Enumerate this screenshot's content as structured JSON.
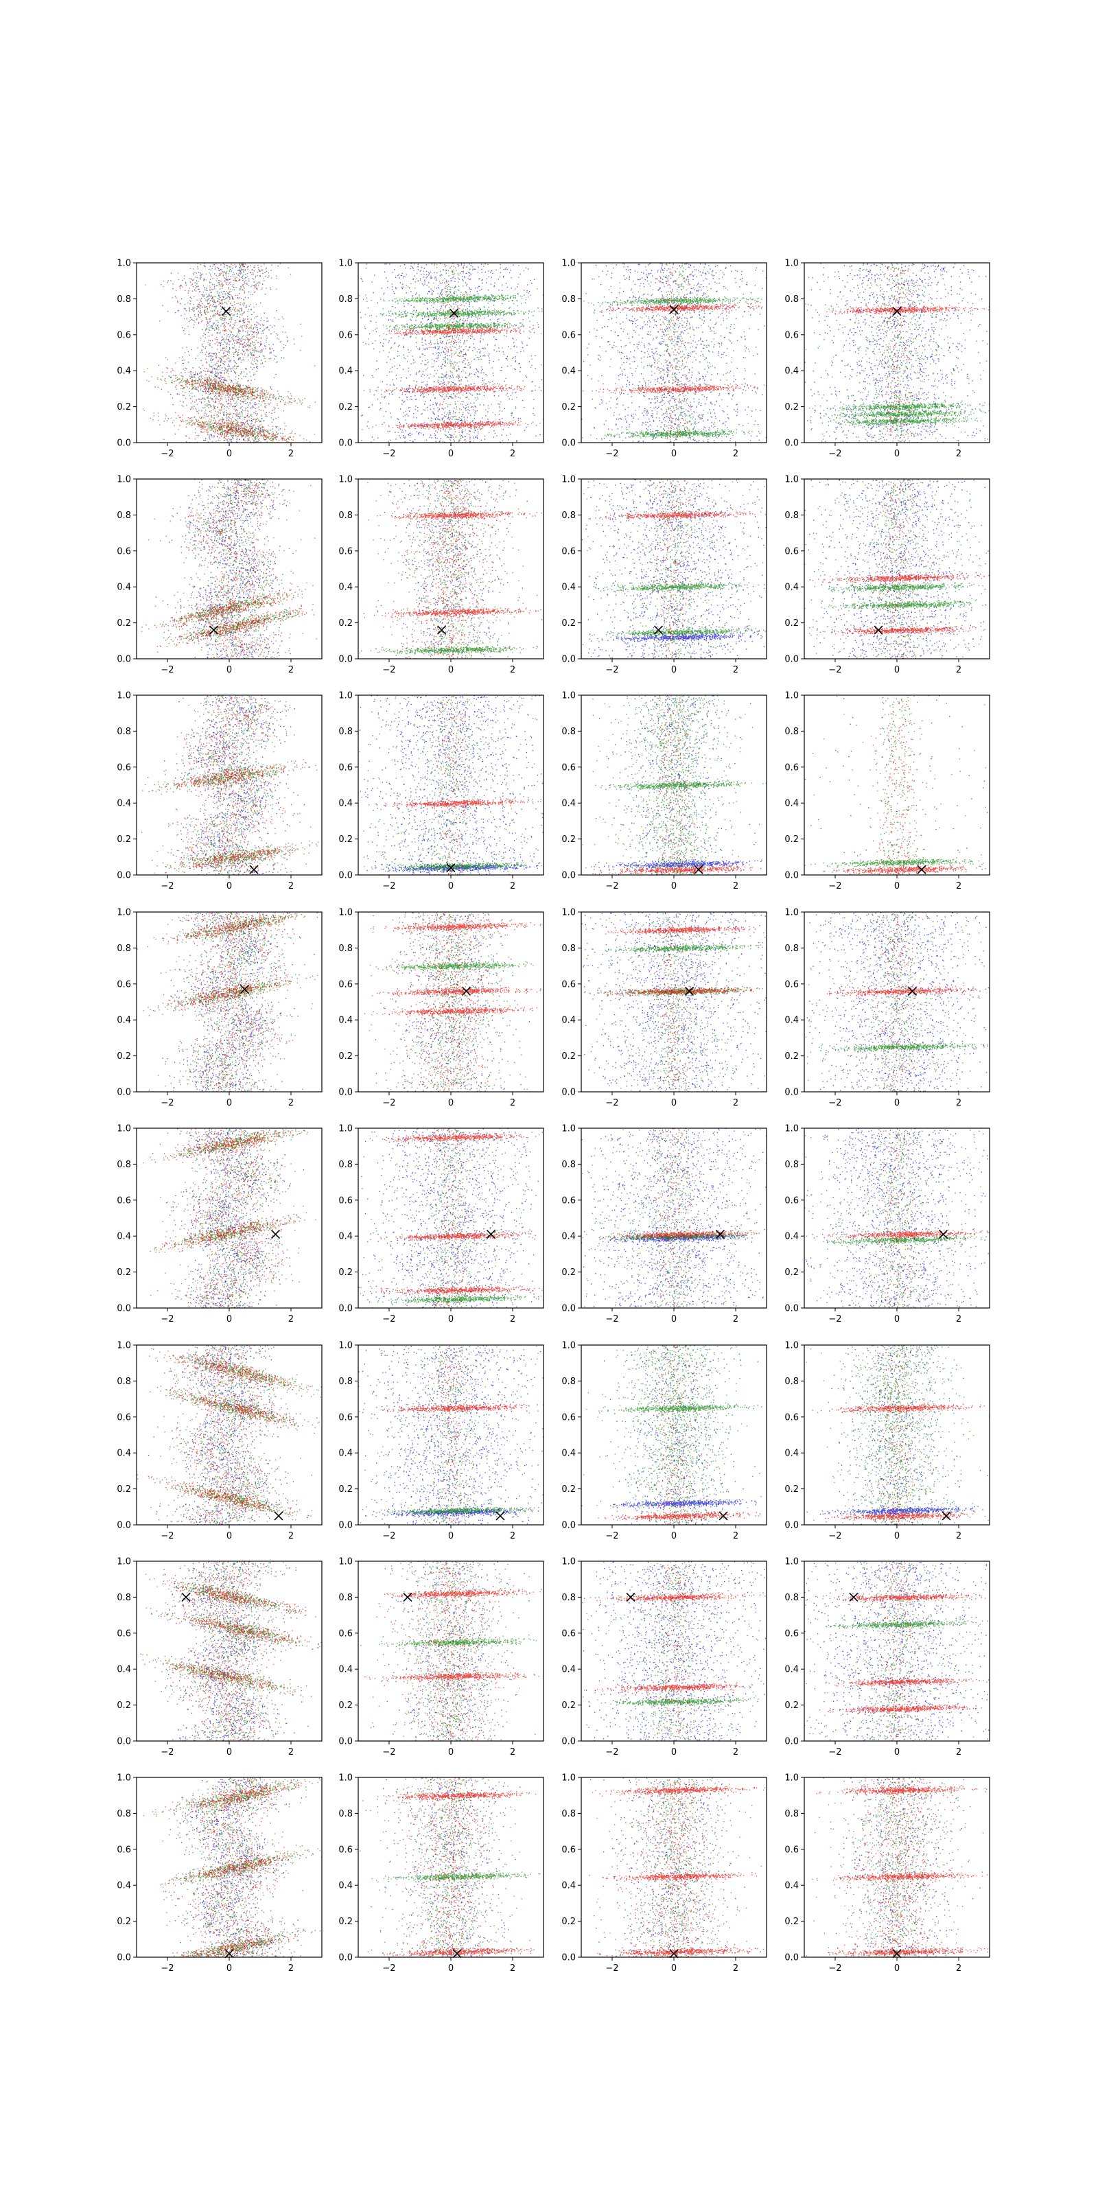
{
  "chart_data": {
    "type": "scatter",
    "layout": {
      "rows": 8,
      "cols": 4
    },
    "xlim": [
      -3,
      3
    ],
    "ylim": [
      0,
      1
    ],
    "xticks": [
      -2,
      0,
      2
    ],
    "yticks": [
      0.0,
      0.2,
      0.4,
      0.6,
      0.8,
      1.0
    ],
    "xtick_labels": [
      "−2",
      "0",
      "2"
    ],
    "ytick_labels": [
      "0.0",
      "0.2",
      "0.4",
      "0.6",
      "0.8",
      "1.0"
    ],
    "series_colors": {
      "red": "#e8140e",
      "green": "#138a13",
      "blue": "#1010e0",
      "marker": "#000000"
    },
    "marker_symbol": "×",
    "panels": [
      [
        {
          "row": 1,
          "col": 1,
          "marker": [
            -0.1,
            0.73
          ],
          "style": "zigzag",
          "bands": [
            0.3,
            0.07
          ],
          "slope": -0.6,
          "colors": [
            "green",
            "red",
            "blue"
          ],
          "density": 1.0
        },
        {
          "row": 1,
          "col": 2,
          "marker": [
            0.1,
            0.72
          ],
          "style": "stripes",
          "bands": [
            {
              "y": 0.72,
              "c": "green"
            },
            {
              "y": 0.8,
              "c": "green"
            },
            {
              "y": 0.65,
              "c": "green"
            },
            {
              "y": 0.62,
              "c": "red"
            },
            {
              "y": 0.3,
              "c": "red"
            },
            {
              "y": 0.1,
              "c": "red"
            }
          ],
          "background": "blue"
        },
        {
          "row": 1,
          "col": 3,
          "marker": [
            0.0,
            0.74
          ],
          "style": "stripes",
          "bands": [
            {
              "y": 0.79,
              "c": "green"
            },
            {
              "y": 0.75,
              "c": "red"
            },
            {
              "y": 0.05,
              "c": "green"
            },
            {
              "y": 0.3,
              "c": "red"
            }
          ],
          "background": "blue"
        },
        {
          "row": 1,
          "col": 4,
          "marker": [
            0.0,
            0.73
          ],
          "style": "stripes",
          "bands": [
            {
              "y": 0.74,
              "c": "red"
            },
            {
              "y": 0.2,
              "c": "green"
            },
            {
              "y": 0.16,
              "c": "green"
            },
            {
              "y": 0.12,
              "c": "green"
            }
          ],
          "background": "blue"
        }
      ],
      [
        {
          "row": 2,
          "col": 1,
          "marker": [
            -0.5,
            0.16
          ],
          "style": "zigzag",
          "bands": [
            0.28,
            0.18
          ],
          "slope": 0.8,
          "colors": [
            "green",
            "red",
            "blue"
          ],
          "density": 1.0
        },
        {
          "row": 2,
          "col": 2,
          "marker": [
            -0.3,
            0.16
          ],
          "style": "stripes",
          "bands": [
            {
              "y": 0.8,
              "c": "red"
            },
            {
              "y": 0.26,
              "c": "red"
            },
            {
              "y": 0.05,
              "c": "green"
            }
          ],
          "background": "mixed"
        },
        {
          "row": 2,
          "col": 3,
          "marker": [
            -0.5,
            0.16
          ],
          "style": "stripes",
          "bands": [
            {
              "y": 0.15,
              "c": "green"
            },
            {
              "y": 0.12,
              "c": "blue"
            },
            {
              "y": 0.4,
              "c": "green"
            },
            {
              "y": 0.8,
              "c": "red"
            }
          ],
          "background": "blue"
        },
        {
          "row": 2,
          "col": 4,
          "marker": [
            -0.6,
            0.16
          ],
          "style": "stripes",
          "bands": [
            {
              "y": 0.16,
              "c": "red"
            },
            {
              "y": 0.4,
              "c": "green"
            },
            {
              "y": 0.3,
              "c": "green"
            },
            {
              "y": 0.45,
              "c": "red"
            }
          ],
          "background": "blue"
        }
      ],
      [
        {
          "row": 3,
          "col": 1,
          "marker": [
            0.8,
            0.03
          ],
          "style": "zigzag",
          "bands": [
            0.55,
            0.1
          ],
          "slope": 0.5,
          "colors": [
            "green",
            "red",
            "blue"
          ],
          "density": 1.0
        },
        {
          "row": 3,
          "col": 2,
          "marker": [
            0.0,
            0.04
          ],
          "style": "stripes",
          "bands": [
            {
              "y": 0.05,
              "c": "green"
            },
            {
              "y": 0.04,
              "c": "blue"
            },
            {
              "y": 0.4,
              "c": "red"
            }
          ],
          "background": "blue"
        },
        {
          "row": 3,
          "col": 3,
          "marker": [
            0.8,
            0.03
          ],
          "style": "stripes",
          "bands": [
            {
              "y": 0.03,
              "c": "red"
            },
            {
              "y": 0.06,
              "c": "blue"
            },
            {
              "y": 0.5,
              "c": "green"
            }
          ],
          "background": "green"
        },
        {
          "row": 3,
          "col": 4,
          "marker": [
            0.8,
            0.03
          ],
          "style": "stripes",
          "bands": [
            {
              "y": 0.07,
              "c": "green"
            },
            {
              "y": 0.03,
              "c": "red"
            }
          ],
          "background": "sparse"
        }
      ],
      [
        {
          "row": 4,
          "col": 1,
          "marker": [
            0.5,
            0.57
          ],
          "style": "zigzag",
          "bands": [
            0.55,
            0.92
          ],
          "slope": 0.7,
          "colors": [
            "green",
            "red",
            "blue"
          ],
          "density": 1.0
        },
        {
          "row": 4,
          "col": 2,
          "marker": [
            0.5,
            0.56
          ],
          "style": "stripes",
          "bands": [
            {
              "y": 0.92,
              "c": "red"
            },
            {
              "y": 0.56,
              "c": "red"
            },
            {
              "y": 0.45,
              "c": "red"
            },
            {
              "y": 0.7,
              "c": "green"
            }
          ],
          "background": "mixed"
        },
        {
          "row": 4,
          "col": 3,
          "marker": [
            0.5,
            0.56
          ],
          "style": "stripes",
          "bands": [
            {
              "y": 0.56,
              "c": "green"
            },
            {
              "y": 0.56,
              "c": "red"
            },
            {
              "y": 0.9,
              "c": "red"
            },
            {
              "y": 0.8,
              "c": "green"
            }
          ],
          "background": "blue"
        },
        {
          "row": 4,
          "col": 4,
          "marker": [
            0.5,
            0.56
          ],
          "style": "stripes",
          "bands": [
            {
              "y": 0.56,
              "c": "red"
            },
            {
              "y": 0.25,
              "c": "green"
            }
          ],
          "background": "blue"
        }
      ],
      [
        {
          "row": 5,
          "col": 1,
          "marker": [
            1.5,
            0.41
          ],
          "style": "zigzag",
          "bands": [
            0.42,
            0.92
          ],
          "slope": 0.7,
          "colors": [
            "green",
            "red",
            "blue"
          ],
          "density": 1.0
        },
        {
          "row": 5,
          "col": 2,
          "marker": [
            1.3,
            0.41
          ],
          "style": "stripes",
          "bands": [
            {
              "y": 0.95,
              "c": "red"
            },
            {
              "y": 0.4,
              "c": "red"
            },
            {
              "y": 0.05,
              "c": "green"
            },
            {
              "y": 0.1,
              "c": "red"
            }
          ],
          "background": "blue"
        },
        {
          "row": 5,
          "col": 3,
          "marker": [
            1.5,
            0.41
          ],
          "style": "stripes",
          "bands": [
            {
              "y": 0.4,
              "c": "green"
            },
            {
              "y": 0.39,
              "c": "blue"
            },
            {
              "y": 0.41,
              "c": "red"
            }
          ],
          "background": "blue"
        },
        {
          "row": 5,
          "col": 4,
          "marker": [
            1.5,
            0.41
          ],
          "style": "stripes",
          "bands": [
            {
              "y": 0.41,
              "c": "red"
            },
            {
              "y": 0.38,
              "c": "green"
            }
          ],
          "background": "blue"
        }
      ],
      [
        {
          "row": 6,
          "col": 1,
          "marker": [
            1.6,
            0.05
          ],
          "style": "zigzag",
          "bands": [
            0.15,
            0.65,
            0.85
          ],
          "slope": -0.8,
          "colors": [
            "green",
            "red",
            "blue"
          ],
          "density": 1.0
        },
        {
          "row": 6,
          "col": 2,
          "marker": [
            1.6,
            0.05
          ],
          "style": "stripes",
          "bands": [
            {
              "y": 0.08,
              "c": "green"
            },
            {
              "y": 0.07,
              "c": "blue"
            },
            {
              "y": 0.65,
              "c": "red"
            }
          ],
          "background": "blue"
        },
        {
          "row": 6,
          "col": 3,
          "marker": [
            1.6,
            0.05
          ],
          "style": "stripes",
          "bands": [
            {
              "y": 0.05,
              "c": "red"
            },
            {
              "y": 0.12,
              "c": "blue"
            },
            {
              "y": 0.65,
              "c": "green"
            }
          ],
          "background": "green"
        },
        {
          "row": 6,
          "col": 4,
          "marker": [
            1.6,
            0.05
          ],
          "style": "stripes",
          "bands": [
            {
              "y": 0.05,
              "c": "red"
            },
            {
              "y": 0.08,
              "c": "blue"
            },
            {
              "y": 0.65,
              "c": "red"
            }
          ],
          "background": "green"
        }
      ],
      [
        {
          "row": 7,
          "col": 1,
          "marker": [
            -1.4,
            0.8
          ],
          "style": "zigzag",
          "bands": [
            0.36,
            0.8,
            0.62
          ],
          "slope": -0.7,
          "colors": [
            "green",
            "red",
            "blue"
          ],
          "density": 1.0
        },
        {
          "row": 7,
          "col": 2,
          "marker": [
            -1.4,
            0.8
          ],
          "style": "stripes",
          "bands": [
            {
              "y": 0.82,
              "c": "red"
            },
            {
              "y": 0.36,
              "c": "red"
            },
            {
              "y": 0.55,
              "c": "green"
            }
          ],
          "background": "mixed"
        },
        {
          "row": 7,
          "col": 3,
          "marker": [
            -1.4,
            0.8
          ],
          "style": "stripes",
          "bands": [
            {
              "y": 0.8,
              "c": "red"
            },
            {
              "y": 0.22,
              "c": "green"
            },
            {
              "y": 0.3,
              "c": "red"
            }
          ],
          "background": "blue"
        },
        {
          "row": 7,
          "col": 4,
          "marker": [
            -1.4,
            0.8
          ],
          "style": "stripes",
          "bands": [
            {
              "y": 0.8,
              "c": "red"
            },
            {
              "y": 0.65,
              "c": "green"
            },
            {
              "y": 0.33,
              "c": "red"
            },
            {
              "y": 0.18,
              "c": "red"
            }
          ],
          "background": "blue"
        }
      ],
      [
        {
          "row": 8,
          "col": 1,
          "marker": [
            0.0,
            0.02
          ],
          "style": "zigzag",
          "bands": [
            0.05,
            0.5,
            0.9
          ],
          "slope": 0.7,
          "colors": [
            "green",
            "red",
            "blue"
          ],
          "density": 1.0
        },
        {
          "row": 8,
          "col": 2,
          "marker": [
            0.2,
            0.02
          ],
          "style": "stripes",
          "bands": [
            {
              "y": 0.03,
              "c": "red"
            },
            {
              "y": 0.45,
              "c": "green"
            },
            {
              "y": 0.9,
              "c": "red"
            }
          ],
          "background": "mixed"
        },
        {
          "row": 8,
          "col": 3,
          "marker": [
            0.0,
            0.02
          ],
          "style": "stripes",
          "bands": [
            {
              "y": 0.03,
              "c": "red"
            },
            {
              "y": 0.45,
              "c": "red"
            },
            {
              "y": 0.93,
              "c": "red"
            }
          ],
          "background": "mixed"
        },
        {
          "row": 8,
          "col": 4,
          "marker": [
            0.0,
            0.02
          ],
          "style": "stripes",
          "bands": [
            {
              "y": 0.03,
              "c": "red"
            },
            {
              "y": 0.45,
              "c": "red"
            },
            {
              "y": 0.93,
              "c": "red"
            }
          ],
          "background": "mixed"
        }
      ]
    ]
  }
}
